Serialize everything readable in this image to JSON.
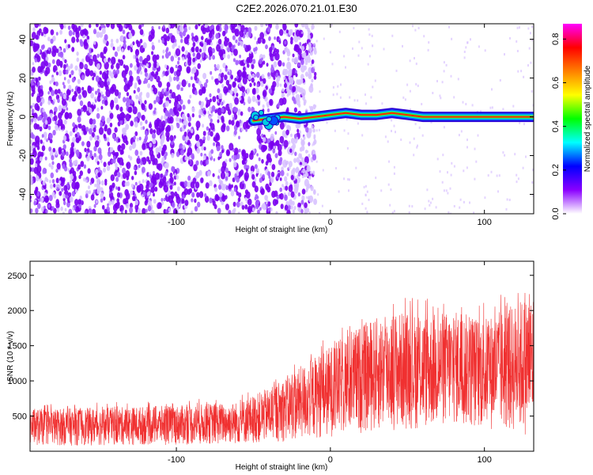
{
  "title": "C2E2.2026.070.21.01.E30",
  "chart_data": [
    {
      "type": "heatmap",
      "name": "spectrogram",
      "xlabel": "Height of straight line (km)",
      "ylabel": "Frequency (Hz)",
      "xlim": [
        -195,
        132
      ],
      "ylim": [
        -50,
        48
      ],
      "xticks": [
        -100,
        0,
        100
      ],
      "yticks": [
        -40,
        -20,
        0,
        20,
        40
      ],
      "colorbar": {
        "label": "Normalized spectral amplitude",
        "range": [
          0,
          0.87
        ],
        "ticks": [
          0.0,
          0.2,
          0.4,
          0.6,
          0.8
        ],
        "colors": [
          "#ffffff",
          "#8a00ff",
          "#0000ff",
          "#00ffff",
          "#00ff00",
          "#ffff00",
          "#ff8000",
          "#ff0000",
          "#ff00ff"
        ]
      },
      "noise_region_x": [
        -195,
        -20
      ],
      "signal_line": {
        "x": [
          -50,
          -40,
          -30,
          -20,
          -10,
          0,
          10,
          20,
          30,
          40,
          50,
          60,
          70,
          80,
          90,
          100,
          110,
          120,
          132
        ],
        "y": [
          -2,
          -1,
          0,
          -1,
          0,
          1,
          2,
          1,
          1,
          2,
          1,
          0,
          0,
          0,
          0,
          0,
          0,
          0,
          0
        ]
      },
      "colors": {
        "noise_dark": "#7a00f0",
        "noise_mid": "#a45cff",
        "noise_light": "#d8c2ff"
      }
    },
    {
      "type": "line",
      "name": "snr",
      "xlabel": "Height of straight line (km)",
      "ylabel": "SNR (10 * v/v)",
      "xlim": [
        -195,
        132
      ],
      "ylim": [
        0,
        2700
      ],
      "xticks": [
        -100,
        0,
        100
      ],
      "yticks": [
        500,
        1000,
        1500,
        2000,
        2500
      ],
      "envelope": {
        "x": [
          -195,
          -150,
          -100,
          -60,
          -40,
          -20,
          0,
          20,
          40,
          60,
          80,
          100,
          120,
          132
        ],
        "upper": [
          600,
          620,
          650,
          700,
          900,
          1200,
          1500,
          1800,
          2000,
          1950,
          2000,
          1900,
          2100,
          2300
        ],
        "lower": [
          80,
          80,
          90,
          100,
          120,
          150,
          200,
          250,
          300,
          300,
          350,
          300,
          250,
          200
        ]
      },
      "color": "#f03030"
    }
  ]
}
